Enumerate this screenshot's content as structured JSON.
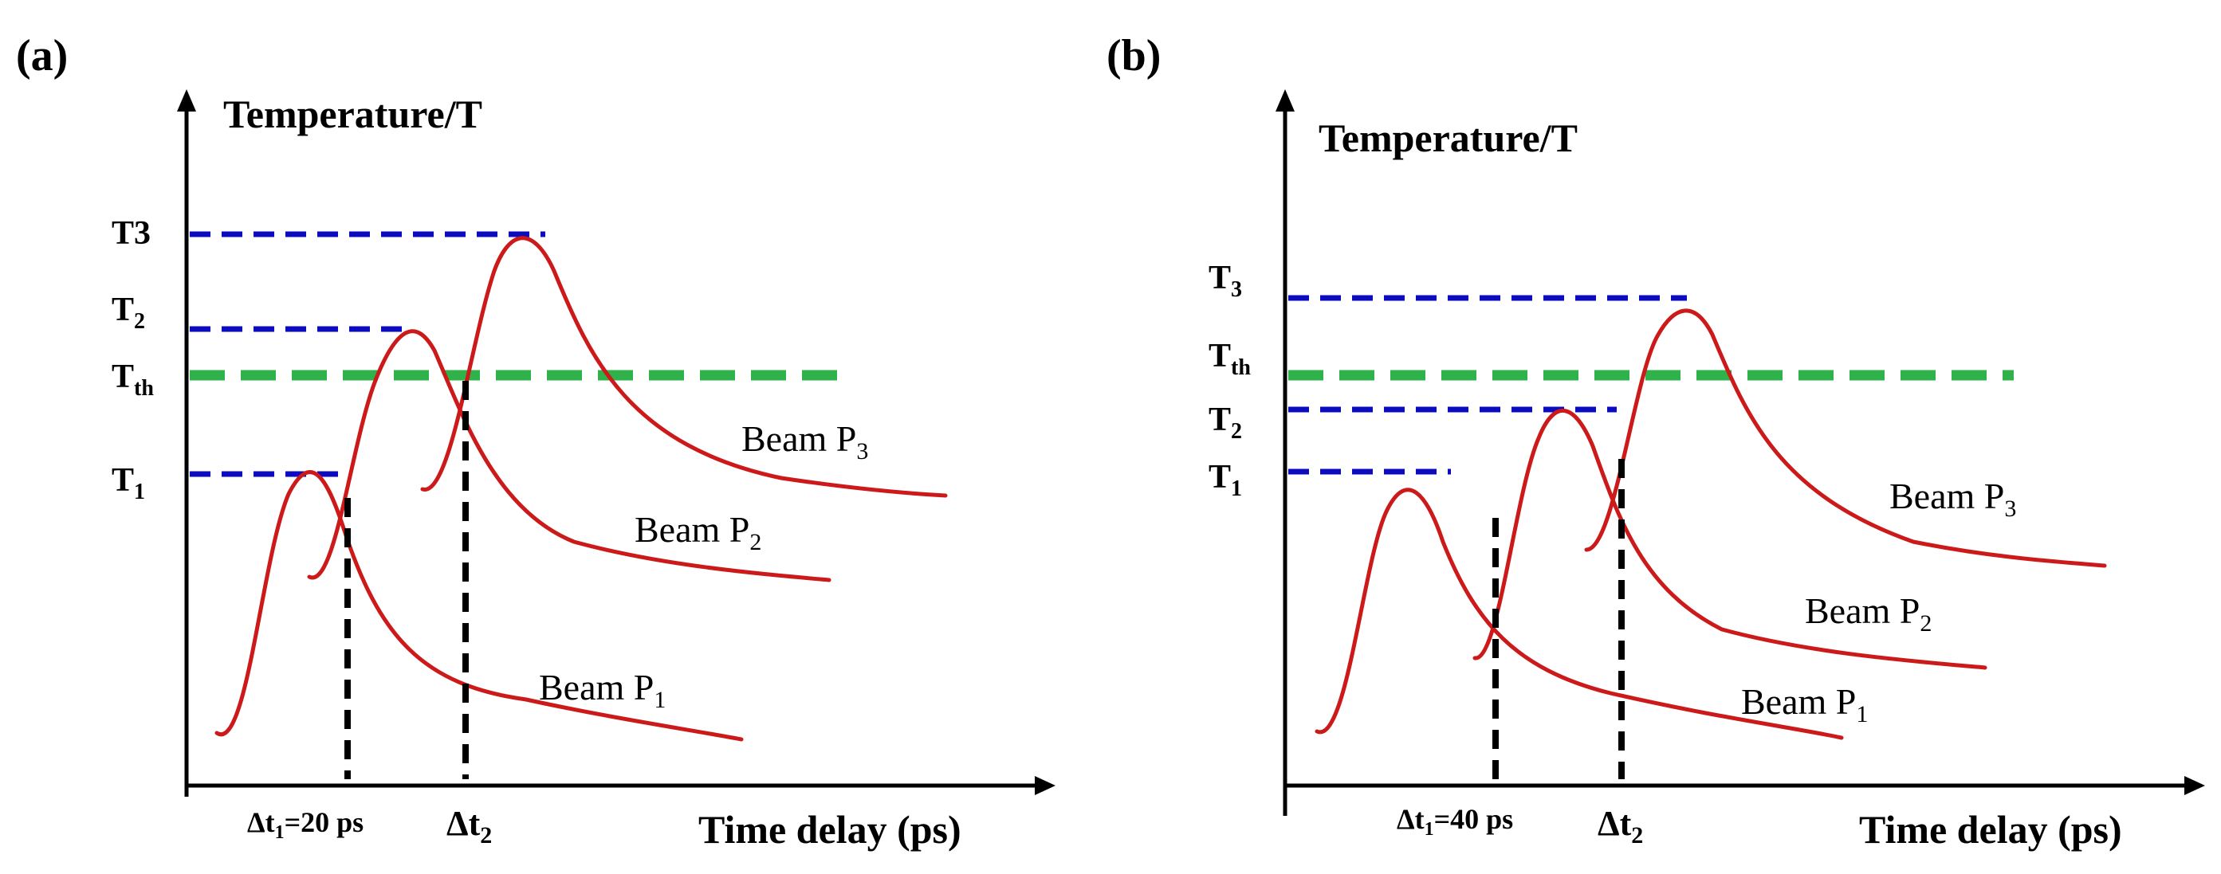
{
  "panel_a": {
    "label": "(a)",
    "y_axis_label": "Temperature/T",
    "x_axis_label": "Time delay (ps)",
    "levels": [
      {
        "name": "T3",
        "sub": ""
      },
      {
        "name": "T",
        "sub": "2"
      },
      {
        "name": "T",
        "sub": "th"
      },
      {
        "name": "T",
        "sub": "1"
      }
    ],
    "delays": [
      {
        "text": "Δt",
        "sub": "1",
        "suffix": "=20 ps"
      },
      {
        "text": "Δt",
        "sub": "2",
        "suffix": ""
      }
    ],
    "beams": [
      {
        "text": "Beam  P",
        "sub": "1"
      },
      {
        "text": "Beam  P",
        "sub": "2"
      },
      {
        "text": "Beam  P",
        "sub": "3"
      }
    ]
  },
  "panel_b": {
    "label": "(b)",
    "y_axis_label": "Temperature/T",
    "x_axis_label": "Time delay (ps)",
    "levels": [
      {
        "name": "T",
        "sub": "3"
      },
      {
        "name": "T",
        "sub": "th"
      },
      {
        "name": "T",
        "sub": "2"
      },
      {
        "name": "T",
        "sub": "1"
      }
    ],
    "delays": [
      {
        "text": "Δt",
        "sub": "1",
        "suffix": "=40 ps"
      },
      {
        "text": "Δt",
        "sub": "2",
        "suffix": ""
      }
    ],
    "beams": [
      {
        "text": "Beam  P",
        "sub": "1"
      },
      {
        "text": "Beam  P",
        "sub": "2"
      },
      {
        "text": "Beam  P",
        "sub": "3"
      }
    ]
  },
  "colors": {
    "curve": "#cc1a1a",
    "level_line": "#0b0bbf",
    "threshold_line": "#2fb24a",
    "delay_marker": "#000000"
  }
}
